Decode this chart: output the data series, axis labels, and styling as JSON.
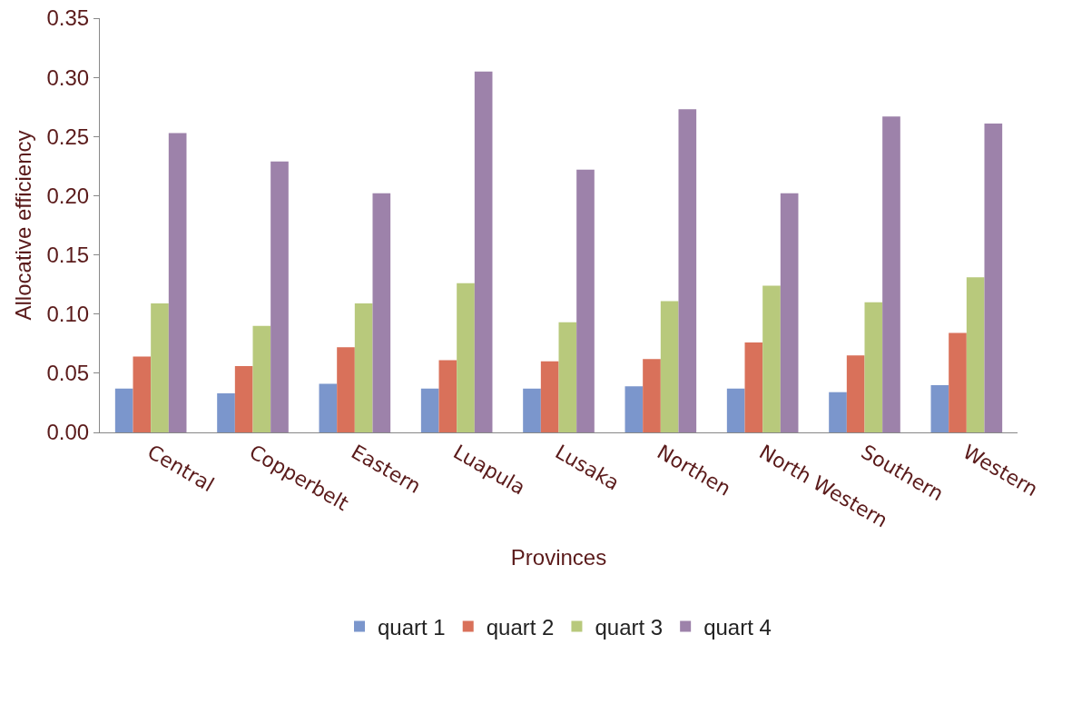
{
  "chart_data": {
    "type": "bar",
    "xlabel": "Provinces",
    "ylabel": "Allocative efficiency",
    "categories": [
      "Central",
      "Copperbelt",
      "Eastern",
      "Luapula",
      "Lusaka",
      "Northen",
      "North Western",
      "Southern",
      "Western"
    ],
    "series": [
      {
        "name": "quart 1",
        "color": "#7b96cc",
        "values": [
          0.037,
          0.033,
          0.041,
          0.037,
          0.037,
          0.039,
          0.037,
          0.034,
          0.04
        ]
      },
      {
        "name": "quart 2",
        "color": "#d9715a",
        "values": [
          0.064,
          0.056,
          0.072,
          0.061,
          0.06,
          0.062,
          0.076,
          0.065,
          0.084
        ]
      },
      {
        "name": "quart 3",
        "color": "#b8c97c",
        "values": [
          0.109,
          0.09,
          0.109,
          0.126,
          0.093,
          0.111,
          0.124,
          0.11,
          0.131
        ]
      },
      {
        "name": "quart 4",
        "color": "#9d82aa",
        "values": [
          0.253,
          0.229,
          0.202,
          0.305,
          0.222,
          0.273,
          0.202,
          0.267,
          0.261
        ]
      }
    ],
    "ylim": [
      0,
      0.35
    ],
    "yticks": [
      {
        "value": 0,
        "label": "0.00"
      },
      {
        "value": 0.05,
        "label": "0.05"
      },
      {
        "value": 0.1,
        "label": "0.10"
      },
      {
        "value": 0.15,
        "label": "0.15"
      },
      {
        "value": 0.2,
        "label": "0.20"
      },
      {
        "value": 0.25,
        "label": "0.25"
      },
      {
        "value": 0.3,
        "label": "0.30"
      },
      {
        "value": 0.35,
        "label": "0.35"
      }
    ],
    "grid": false,
    "legend": "bottom"
  }
}
